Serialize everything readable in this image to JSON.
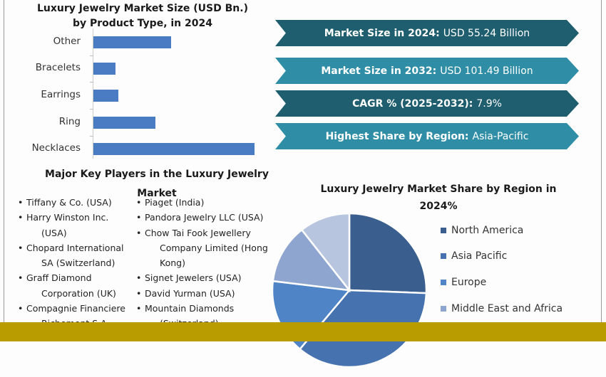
{
  "bar_chart_title": "Luxury Jewelry Market Size (USD Bn.) by Product Type, in 2024",
  "chart_data": [
    {
      "type": "bar",
      "orientation": "horizontal",
      "title": "Luxury Jewelry Market Size (USD Bn.) by Product Type, in 2024",
      "categories": [
        "Other",
        "Bracelets",
        "Earrings",
        "Ring",
        "Necklaces"
      ],
      "values": [
        12.4,
        3.5,
        4.0,
        9.8,
        25.6
      ],
      "xlabel": "",
      "ylabel": "",
      "xlim": [
        0,
        25.6
      ],
      "grid": false,
      "bar_color": "#4a7cc4"
    },
    {
      "type": "pie",
      "title": "Luxury Jewelry Market Share by Region in 2024%",
      "series": [
        {
          "name": "North America",
          "value": 25.6,
          "color": "#3a5f8f"
        },
        {
          "name": "Asia Pacific",
          "value": 35.5,
          "color": "#4673b0"
        },
        {
          "name": "Europe",
          "value": 15.8,
          "color": "#4f84c6"
        },
        {
          "name": "Middle East and Africa",
          "value": 12.5,
          "color": "#8ea6cf"
        },
        {
          "name": "",
          "value": 10.6,
          "color": "#b8c5de"
        }
      ],
      "legend": "right"
    }
  ],
  "stats": [
    {
      "label": "Market Size in 2024:",
      "value": "USD 55.24 Billion",
      "color": "#1f5e6e"
    },
    {
      "label": "Market Size in 2032:",
      "value": "USD 101.49 Billion",
      "color": "#2f8ea6"
    },
    {
      "label": "CAGR % (2025-2032):",
      "value": "7.9%",
      "color": "#1f5e6e"
    },
    {
      "label": "Highest Share by Region:",
      "value": "Asia-Pacific",
      "color": "#2f8ea6"
    }
  ],
  "players": {
    "title": "Major Key Players in the Luxury Jewelry Market",
    "col1": [
      [
        "Tiffany & Co. (USA)"
      ],
      [
        "Harry Winston Inc.",
        "(USA)"
      ],
      [
        "Chopard International",
        "SA (Switzerland)"
      ],
      [
        "Graff Diamond",
        "Corporation (UK)"
      ],
      [
        "Compagnie Financiere",
        "Richemont S.A."
      ]
    ],
    "col2": [
      [
        "Piaget (India)"
      ],
      [
        "Pandora Jewelry LLC (USA)"
      ],
      [
        "Chow Tai Fook Jewellery",
        "Company Limited (Hong",
        "Kong)"
      ],
      [
        "Signet Jewelers (USA)"
      ],
      [
        "David Yurman (USA)"
      ],
      [
        "Mountain Diamonds",
        "(Switzerland)"
      ]
    ]
  },
  "footer_color": "#b89c00"
}
